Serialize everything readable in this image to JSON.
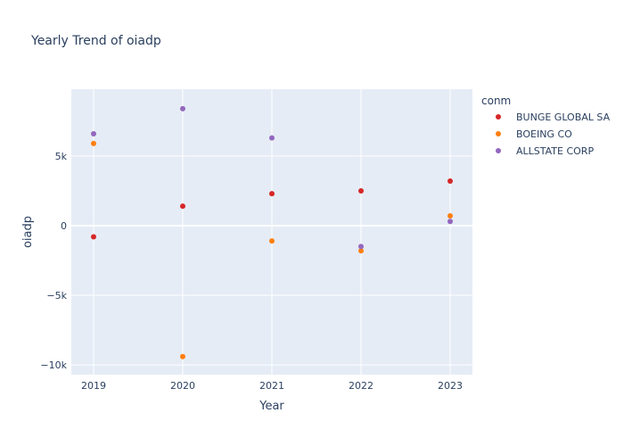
{
  "chart_data": {
    "type": "scatter",
    "title": "Yearly Trend of oiadp",
    "xlabel": "Year",
    "ylabel": "oiadp",
    "legend_title": "conm",
    "legend_position": "right",
    "grid": true,
    "x": [
      2019,
      2020,
      2021,
      2022,
      2023
    ],
    "x_tick_labels": [
      "2019",
      "2020",
      "2021",
      "2022",
      "2023"
    ],
    "y_ticks": [
      -10000,
      -5000,
      0,
      5000
    ],
    "y_tick_labels": [
      "−10k",
      "−5k",
      "0",
      "5k"
    ],
    "xlim": [
      2018.75,
      2023.25
    ],
    "ylim": [
      -10700,
      9800
    ],
    "series": [
      {
        "name": "BUNGE GLOBAL SA",
        "color": "#d62728",
        "values": [
          -800,
          1400,
          2300,
          2500,
          3200
        ]
      },
      {
        "name": "BOEING CO",
        "color": "#ff7f0e",
        "values": [
          5900,
          -9400,
          -1100,
          -1800,
          700
        ]
      },
      {
        "name": "ALLSTATE CORP",
        "color": "#9467bd",
        "values": [
          6600,
          8400,
          6300,
          -1500,
          300
        ]
      }
    ]
  }
}
